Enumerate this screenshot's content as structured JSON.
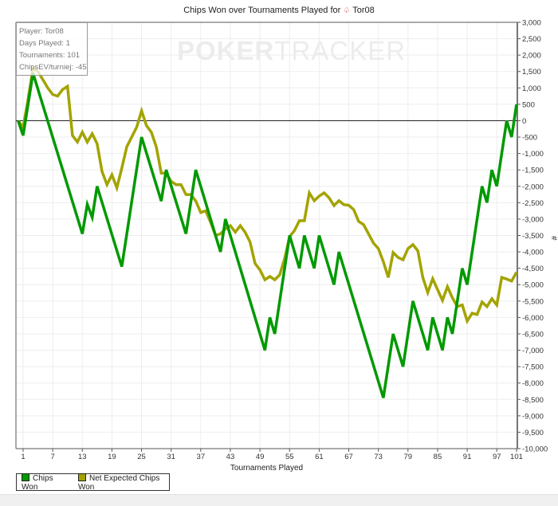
{
  "chart_data": {
    "type": "line",
    "title": "Chips Won over Tournaments Played for",
    "title_player": "Tor08",
    "xlabel": "Tournaments Played",
    "ylabel": "#",
    "xlim": [
      0,
      101
    ],
    "ylim": [
      -10000,
      3000
    ],
    "x_ticks": [
      1,
      7,
      13,
      19,
      25,
      31,
      37,
      43,
      49,
      55,
      61,
      67,
      73,
      79,
      85,
      91,
      97,
      101
    ],
    "y_ticks": [
      3000,
      2500,
      2000,
      1500,
      1000,
      500,
      0,
      -500,
      -1000,
      -1500,
      -2000,
      -2500,
      -3000,
      -3500,
      -4000,
      -4500,
      -5000,
      -5500,
      -6000,
      -6500,
      -7000,
      -7500,
      -8000,
      -8500,
      -9000,
      -9500,
      -10000
    ],
    "y_tick_labels": [
      "3,000",
      "2,500",
      "2,000",
      "1,500",
      "1,000",
      "500",
      "0",
      "-500",
      "-1,000",
      "-1,500",
      "-2,000",
      "-2,500",
      "-3,000",
      "-3,500",
      "-4,000",
      "-4,500",
      "-5,000",
      "-5,500",
      "-6,000",
      "-6,500",
      "-7,000",
      "-7,500",
      "-8,000",
      "-8,500",
      "-9,000",
      "-9,500",
      "-10,000"
    ],
    "grid": true,
    "legend_placement": "bottom-left",
    "series": [
      {
        "name": "Chips Won",
        "color": "#009900",
        "points": [
          [
            0,
            0
          ],
          [
            1,
            -450
          ],
          [
            3,
            1450
          ],
          [
            13,
            -3450
          ],
          [
            14,
            -2550
          ],
          [
            15,
            -2950
          ],
          [
            16,
            -2000
          ],
          [
            21,
            -4450
          ],
          [
            25,
            -500
          ],
          [
            29,
            -2450
          ],
          [
            30,
            -1500
          ],
          [
            34,
            -3450
          ],
          [
            36,
            -1500
          ],
          [
            41,
            -4000
          ],
          [
            42,
            -3000
          ],
          [
            50,
            -7000
          ],
          [
            51,
            -6000
          ],
          [
            52,
            -6500
          ],
          [
            55,
            -3500
          ],
          [
            57,
            -4500
          ],
          [
            58,
            -3500
          ],
          [
            60,
            -4500
          ],
          [
            61,
            -3500
          ],
          [
            64,
            -5000
          ],
          [
            65,
            -4000
          ],
          [
            74,
            -8450
          ],
          [
            76,
            -6500
          ],
          [
            78,
            -7500
          ],
          [
            80,
            -5500
          ],
          [
            83,
            -7000
          ],
          [
            84,
            -6000
          ],
          [
            86,
            -7000
          ],
          [
            87,
            -6000
          ],
          [
            88,
            -6500
          ],
          [
            90,
            -4500
          ],
          [
            91,
            -5000
          ],
          [
            94,
            -2000
          ],
          [
            95,
            -2500
          ],
          [
            96,
            -1500
          ],
          [
            97,
            -2000
          ],
          [
            99,
            0
          ],
          [
            100,
            -500
          ],
          [
            101,
            500
          ]
        ]
      },
      {
        "name": "Net Expected Chips Won",
        "color": "#a3a300",
        "points": [
          [
            0,
            0
          ],
          [
            1,
            -200
          ],
          [
            2,
            650
          ],
          [
            3,
            1600
          ],
          [
            4,
            1500
          ],
          [
            5,
            1250
          ],
          [
            6,
            1000
          ],
          [
            7,
            800
          ],
          [
            8,
            750
          ],
          [
            9,
            950
          ],
          [
            10,
            1050
          ],
          [
            11,
            -450
          ],
          [
            12,
            -650
          ],
          [
            13,
            -350
          ],
          [
            14,
            -650
          ],
          [
            15,
            -400
          ],
          [
            16,
            -700
          ],
          [
            17,
            -1550
          ],
          [
            18,
            -1950
          ],
          [
            19,
            -1650
          ],
          [
            20,
            -2050
          ],
          [
            21,
            -1450
          ],
          [
            22,
            -800
          ],
          [
            23,
            -500
          ],
          [
            24,
            -200
          ],
          [
            25,
            300
          ],
          [
            26,
            -150
          ],
          [
            27,
            -350
          ],
          [
            28,
            -800
          ],
          [
            29,
            -1600
          ],
          [
            30,
            -1600
          ],
          [
            31,
            -1850
          ],
          [
            32,
            -1950
          ],
          [
            33,
            -1950
          ],
          [
            34,
            -2250
          ],
          [
            35,
            -2250
          ],
          [
            36,
            -2450
          ],
          [
            37,
            -2800
          ],
          [
            38,
            -2750
          ],
          [
            39,
            -3100
          ],
          [
            40,
            -3500
          ],
          [
            41,
            -3450
          ],
          [
            42,
            -3300
          ],
          [
            43,
            -3200
          ],
          [
            44,
            -3400
          ],
          [
            45,
            -3200
          ],
          [
            46,
            -3400
          ],
          [
            47,
            -3700
          ],
          [
            48,
            -4350
          ],
          [
            49,
            -4550
          ],
          [
            50,
            -4850
          ],
          [
            51,
            -4750
          ],
          [
            52,
            -4850
          ],
          [
            53,
            -4700
          ],
          [
            54,
            -4200
          ],
          [
            55,
            -3540
          ],
          [
            56,
            -3350
          ],
          [
            57,
            -3050
          ],
          [
            58,
            -3050
          ],
          [
            59,
            -2200
          ],
          [
            60,
            -2440
          ],
          [
            61,
            -2300
          ],
          [
            62,
            -2200
          ],
          [
            63,
            -2350
          ],
          [
            64,
            -2590
          ],
          [
            65,
            -2440
          ],
          [
            66,
            -2560
          ],
          [
            67,
            -2580
          ],
          [
            68,
            -2710
          ],
          [
            69,
            -3070
          ],
          [
            70,
            -3170
          ],
          [
            71,
            -3450
          ],
          [
            72,
            -3730
          ],
          [
            73,
            -3900
          ],
          [
            74,
            -4300
          ],
          [
            75,
            -4780
          ],
          [
            76,
            -4020
          ],
          [
            77,
            -4170
          ],
          [
            78,
            -4240
          ],
          [
            79,
            -3900
          ],
          [
            80,
            -3780
          ],
          [
            81,
            -3970
          ],
          [
            82,
            -4780
          ],
          [
            83,
            -5240
          ],
          [
            84,
            -4820
          ],
          [
            85,
            -5150
          ],
          [
            86,
            -5480
          ],
          [
            87,
            -5060
          ],
          [
            88,
            -5400
          ],
          [
            89,
            -5670
          ],
          [
            90,
            -5620
          ],
          [
            91,
            -6110
          ],
          [
            92,
            -5870
          ],
          [
            93,
            -5910
          ],
          [
            94,
            -5530
          ],
          [
            95,
            -5670
          ],
          [
            96,
            -5430
          ],
          [
            97,
            -5620
          ],
          [
            98,
            -4780
          ],
          [
            99,
            -4830
          ],
          [
            100,
            -4890
          ],
          [
            101,
            -4620
          ]
        ]
      }
    ]
  },
  "info_box": {
    "player": "Player: Tor08",
    "days": "Days Played: 1",
    "tournaments": "Tournaments: 101",
    "chipsev": "ChipsEV/turniej: -45"
  },
  "watermark": {
    "bold": "POKER",
    "light": "TRACKER"
  }
}
